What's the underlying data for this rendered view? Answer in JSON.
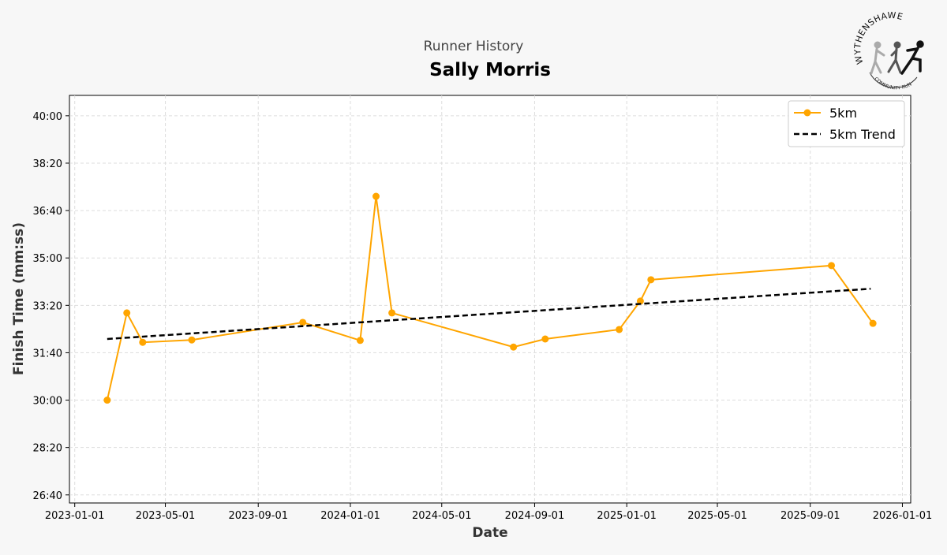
{
  "logo": {
    "top_text": "WYTHENSHAWE",
    "bottom_text": "COMMUNITY RUN"
  },
  "chart_data": {
    "type": "line",
    "supertitle": "Runner History",
    "title": "Sally Morris",
    "xlabel": "Date",
    "ylabel": "Finish Time (mm:ss)",
    "xlim": [
      "2022-12-25",
      "2026-01-12"
    ],
    "ylim_seconds": [
      1583,
      2443
    ],
    "grid": true,
    "legend_position": "top-right",
    "x_ticks": [
      "2023-01-01",
      "2023-05-01",
      "2023-09-01",
      "2024-01-01",
      "2024-05-01",
      "2024-09-01",
      "2025-01-01",
      "2025-05-01",
      "2025-09-01",
      "2026-01-01"
    ],
    "y_ticks": [
      "26:40",
      "28:20",
      "30:00",
      "31:40",
      "33:20",
      "35:00",
      "36:40",
      "38:20",
      "40:00"
    ],
    "series": [
      {
        "name": "5km",
        "color": "#ffa500",
        "style": "solid-with-markers",
        "x": [
          "2023-02-13",
          "2023-03-11",
          "2023-04-01",
          "2023-06-05",
          "2023-10-30",
          "2024-01-14",
          "2024-02-04",
          "2024-02-25",
          "2024-08-04",
          "2024-09-15",
          "2024-12-22",
          "2025-01-19",
          "2025-02-02",
          "2025-09-29",
          "2025-11-23"
        ],
        "y": [
          "30:00",
          "33:04",
          "32:02",
          "32:07",
          "32:44",
          "32:06",
          "37:10",
          "33:04",
          "31:52",
          "32:09",
          "32:29",
          "33:29",
          "34:14",
          "34:44",
          "32:42"
        ]
      },
      {
        "name": "5km Trend",
        "color": "#000000",
        "style": "dashed",
        "x": [
          "2023-02-13",
          "2025-11-20"
        ],
        "y": [
          "32:09",
          "33:55"
        ]
      }
    ]
  }
}
